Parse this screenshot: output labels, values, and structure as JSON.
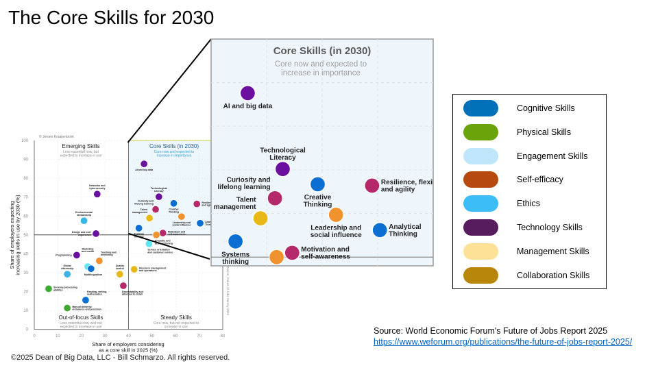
{
  "slide": {
    "title": "The Core Skills for 2030",
    "copyright": "©2025 Dean of Big Data, LLC - Bill Schmarzo. All rights reserved.",
    "source_text": "Source: World Economic Forum's Future of Jobs Report 2025",
    "source_link": "https://www.weforum.org/publications/the-future-of-jobs-report-2025/"
  },
  "legend": {
    "items": [
      {
        "label": "Cognitive Skills",
        "color": "#0070b8"
      },
      {
        "label": "Physical Skills",
        "color": "#6aa30a"
      },
      {
        "label": "Engagement Skills",
        "color": "#bfe6fb"
      },
      {
        "label": "Self-efficacy",
        "color": "#b5490f"
      },
      {
        "label": "Ethics",
        "color": "#3dbdf7"
      },
      {
        "label": "Technology Skills",
        "color": "#561c5e"
      },
      {
        "label": "Management Skills",
        "color": "#fde196"
      },
      {
        "label": "Collaboration Skills",
        "color": "#b8860b"
      }
    ]
  },
  "chart_data": {
    "type": "scatter",
    "credit": "© Jeroen Kraaijenbrink",
    "side_note": "Source: Future of Jobs Survey 2024",
    "xlabel": "Share of employers considering\nas a core skill in 2025 (%)",
    "ylabel": "Share of employers expecting\nincreasing skills in use by 2030 (%)",
    "xlim": [
      0,
      80
    ],
    "ylim": [
      0,
      100
    ],
    "xticks": [
      0,
      10,
      20,
      30,
      40,
      50,
      60,
      70,
      80
    ],
    "yticks": [
      0,
      10,
      20,
      30,
      40,
      50,
      60,
      70,
      80,
      90,
      100
    ],
    "grid": true,
    "quadrants": {
      "emerging": {
        "title": "Emerging Skills",
        "subtitle": "Less essential now, but\nexpected to increase in use"
      },
      "core": {
        "title": "Core Skills (in 2030)",
        "subtitle": "Core now and expected to\nincrease in importance"
      },
      "out_of_focus": {
        "title": "Out-of-focus Skills",
        "subtitle": "Less essential now, and not\nexpected to increase in use"
      },
      "steady": {
        "title": "Steady Skills",
        "subtitle": "Core now, but not expected to\nincrease in use"
      }
    },
    "zoom_view": {
      "title": "Core Skills (in 2030)",
      "subtitle": "Core now and expected to\nincrease in importance",
      "xlim": [
        40,
        80
      ],
      "ylim": [
        48,
        100
      ]
    },
    "colors": {
      "technology": "#6a0f9e",
      "cognitive": "#0a6fd0",
      "collaboration": "#f0922e",
      "management": "#e8b819",
      "self_efficacy": "#b5286a",
      "ethics": "#3ab5e8",
      "engagement": "#62e3f2",
      "physical": "#3faa30"
    },
    "points": [
      {
        "label": "AI and big data",
        "x": 46.6,
        "y": 87.6,
        "group": "technology",
        "pos": "below"
      },
      {
        "label": "Networks and\ncybersecurity",
        "x": 26.7,
        "y": 71.6,
        "group": "technology",
        "pos": "above"
      },
      {
        "label": "Environmental\nstewardship",
        "x": 21.1,
        "y": 57.5,
        "group": "ethics",
        "pos": "above"
      },
      {
        "label": "Design and user\nexperience",
        "x": 26.2,
        "y": 50.7,
        "group": "technology",
        "pos": "left"
      },
      {
        "label": "Technological\nLiteracy",
        "x": 52.9,
        "y": 70.2,
        "group": "technology",
        "pos": "above"
      },
      {
        "label": "Curiosity and\nlifelong learning",
        "x": 51.5,
        "y": 63.5,
        "group": "self_efficacy",
        "pos": "above-left"
      },
      {
        "label": "Creative\nThinking",
        "x": 59.2,
        "y": 66.7,
        "group": "cognitive",
        "pos": "below"
      },
      {
        "label": "Resilience, flexibility\nand agility",
        "x": 69.0,
        "y": 66.4,
        "group": "self_efficacy",
        "pos": "right"
      },
      {
        "label": "Talent\nmanagement",
        "x": 48.9,
        "y": 58.9,
        "group": "management",
        "pos": "above-left"
      },
      {
        "label": "Leadership and\nsocial influence",
        "x": 62.5,
        "y": 59.7,
        "group": "collaboration",
        "pos": "below"
      },
      {
        "label": "Analytical\nThinking",
        "x": 70.4,
        "y": 56.2,
        "group": "cognitive",
        "pos": "right"
      },
      {
        "label": "Systems\nthinking",
        "x": 44.4,
        "y": 53.6,
        "group": "cognitive",
        "pos": "below"
      },
      {
        "label": "Motivation and\nself-awareness",
        "x": 54.6,
        "y": 51.0,
        "group": "self_efficacy",
        "pos": "right"
      },
      {
        "label": "Empathy and\nactive listening",
        "x": 51.8,
        "y": 50.0,
        "group": "collaboration",
        "pos": "below-right"
      },
      {
        "label": "Service orientation\nand customer service",
        "x": 48.7,
        "y": 45.3,
        "group": "engagement",
        "pos": "below-right"
      },
      {
        "label": "Marketing\nand media",
        "x": 22.7,
        "y": 33.2,
        "group": "engagement",
        "pos": "above-far"
      },
      {
        "label": "Multilingualism",
        "x": 24.1,
        "y": 32.1,
        "group": "cognitive",
        "pos": "below-left"
      },
      {
        "label": "Programming",
        "x": 18.0,
        "y": 39.3,
        "group": "technology",
        "pos": "left"
      },
      {
        "label": "Teaching and\nmentoring",
        "x": 27.6,
        "y": 36.3,
        "group": "collaboration",
        "pos": "above-right"
      },
      {
        "label": "Global\ncitizenship",
        "x": 14.0,
        "y": 29.2,
        "group": "ethics",
        "pos": "above"
      },
      {
        "label": "Quality\ncontrol",
        "x": 36.3,
        "y": 29.2,
        "group": "management",
        "pos": "above"
      },
      {
        "label": "Resource management\nand operations",
        "x": 42.4,
        "y": 31.8,
        "group": "management",
        "pos": "right"
      },
      {
        "label": "Dependability and\nattention to detail",
        "x": 37.8,
        "y": 23.1,
        "group": "self_efficacy",
        "pos": "below-right"
      },
      {
        "label": "Sensory-processing\nabilities",
        "x": 6.1,
        "y": 21.5,
        "group": "physical",
        "pos": "right"
      },
      {
        "label": "Reading, writing,\nmathematics",
        "x": 21.8,
        "y": 15.5,
        "group": "cognitive",
        "pos": "above-right"
      },
      {
        "label": "Manual dexterity,\nendurance and precision",
        "x": 14.0,
        "y": 11.3,
        "group": "physical",
        "pos": "right"
      }
    ]
  }
}
